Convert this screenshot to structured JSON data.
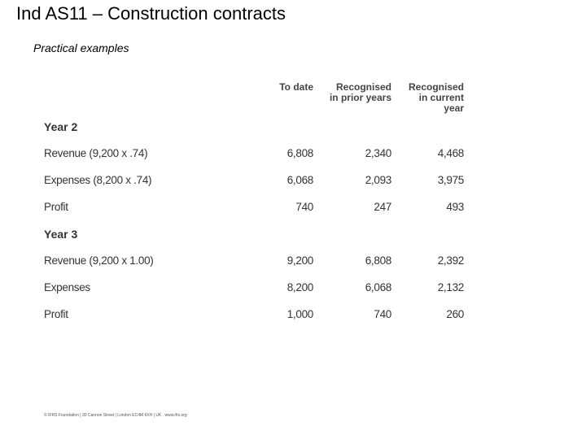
{
  "header": {
    "title": "Ind AS11 – Construction contracts",
    "subtitle": "Practical examples"
  },
  "table": {
    "columns": [
      "To date",
      "Recognised in prior years",
      "Recognised in current year"
    ],
    "sections": [
      {
        "heading": "Year 2",
        "rows": [
          {
            "label": "Revenue (9,200 x .74)",
            "values": [
              "6,808",
              "2,340",
              "4,468"
            ]
          },
          {
            "label": "Expenses (8,200 x .74)",
            "values": [
              "6,068",
              "2,093",
              "3,975"
            ]
          },
          {
            "label": "Profit",
            "values": [
              "740",
              "247",
              "493"
            ]
          }
        ]
      },
      {
        "heading": "Year 3",
        "rows": [
          {
            "label": "Revenue (9,200 x 1.00)",
            "values": [
              "9,200",
              "6,808",
              "2,392"
            ]
          },
          {
            "label": "Expenses",
            "values": [
              "8,200",
              "6,068",
              "2,132"
            ]
          },
          {
            "label": "Profit",
            "values": [
              "1,000",
              "740",
              "260"
            ]
          }
        ]
      }
    ]
  },
  "footer": {
    "text": "© IFRS Foundation | 30 Cannon Street | London EC4M 6XH | UK . www.ifrs.org"
  }
}
